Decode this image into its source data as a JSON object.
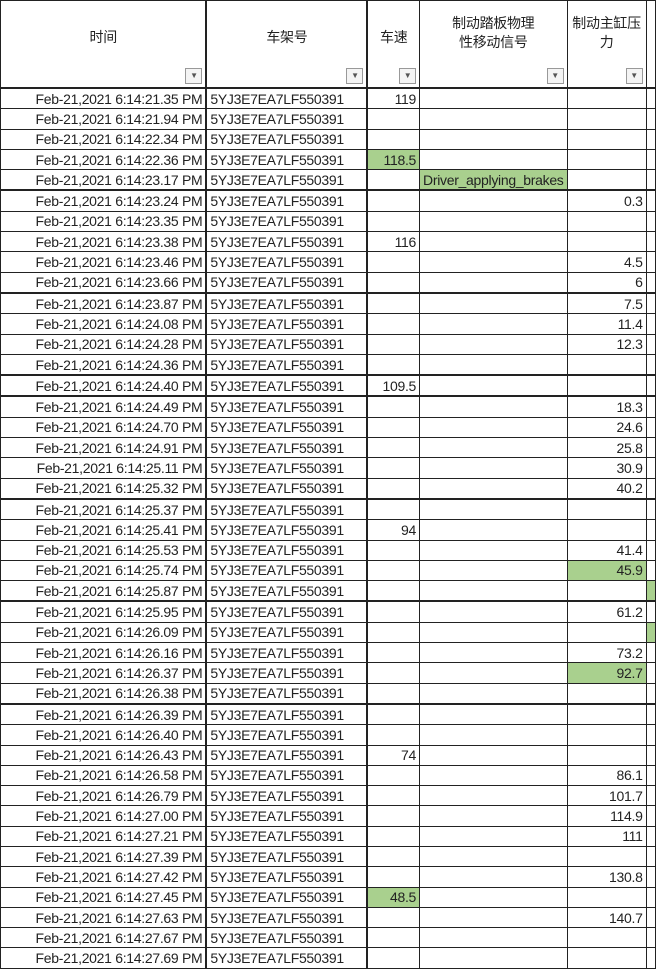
{
  "headers": [
    "时间",
    "车架号",
    "车速",
    "制动踏板物理性移动信号",
    "制动主缸压力"
  ],
  "header_lines": {
    "col3": [
      "制动踏板物理",
      "性移动信号"
    ],
    "col4": [
      "制动主缸压",
      "力"
    ]
  },
  "filter_icon": "dropdown-arrow-icon",
  "highlight_color": "#a9d08e",
  "vin": "5YJ3E7EA7LF550391",
  "rows": [
    {
      "time": "Feb-21,2021 6:14:21.35 PM",
      "speed": "119",
      "signal": "",
      "pressure": ""
    },
    {
      "time": "Feb-21,2021 6:14:21.94 PM",
      "speed": "",
      "signal": "",
      "pressure": ""
    },
    {
      "time": "Feb-21,2021 6:14:22.34 PM",
      "speed": "",
      "signal": "",
      "pressure": ""
    },
    {
      "time": "Feb-21,2021 6:14:22.36 PM",
      "speed": "118.5",
      "signal": "",
      "pressure": "",
      "speed_hl": true
    },
    {
      "time": "Feb-21,2021 6:14:23.17 PM",
      "speed": "",
      "signal": "Driver_applying_brakes",
      "pressure": "",
      "signal_hl": true
    },
    {
      "time": "Feb-21,2021 6:14:23.24 PM",
      "speed": "",
      "signal": "",
      "pressure": "0.3",
      "thick": true
    },
    {
      "time": "Feb-21,2021 6:14:23.35 PM",
      "speed": "",
      "signal": "",
      "pressure": ""
    },
    {
      "time": "Feb-21,2021 6:14:23.38 PM",
      "speed": "116",
      "signal": "",
      "pressure": ""
    },
    {
      "time": "Feb-21,2021 6:14:23.46 PM",
      "speed": "",
      "signal": "",
      "pressure": "4.5"
    },
    {
      "time": "Feb-21,2021 6:14:23.66 PM",
      "speed": "",
      "signal": "",
      "pressure": "6"
    },
    {
      "time": "Feb-21,2021 6:14:23.87 PM",
      "speed": "",
      "signal": "",
      "pressure": "7.5",
      "thick": true
    },
    {
      "time": "Feb-21,2021 6:14:24.08 PM",
      "speed": "",
      "signal": "",
      "pressure": "11.4"
    },
    {
      "time": "Feb-21,2021 6:14:24.28 PM",
      "speed": "",
      "signal": "",
      "pressure": "12.3"
    },
    {
      "time": "Feb-21,2021 6:14:24.36 PM",
      "speed": "",
      "signal": "",
      "pressure": ""
    },
    {
      "time": "Feb-21,2021 6:14:24.40 PM",
      "speed": "109.5",
      "signal": "",
      "pressure": "",
      "thick": true
    },
    {
      "time": "Feb-21,2021 6:14:24.49 PM",
      "speed": "",
      "signal": "",
      "pressure": "18.3",
      "thick": true
    },
    {
      "time": "Feb-21,2021 6:14:24.70 PM",
      "speed": "",
      "signal": "",
      "pressure": "24.6"
    },
    {
      "time": "Feb-21,2021 6:14:24.91 PM",
      "speed": "",
      "signal": "",
      "pressure": "25.8"
    },
    {
      "time": "Feb-21,2021 6:14:25.11 PM",
      "speed": "",
      "signal": "",
      "pressure": "30.9"
    },
    {
      "time": "Feb-21,2021 6:14:25.32 PM",
      "speed": "",
      "signal": "",
      "pressure": "40.2"
    },
    {
      "time": "Feb-21,2021 6:14:25.37 PM",
      "speed": "",
      "signal": "",
      "pressure": "",
      "thick": true
    },
    {
      "time": "Feb-21,2021 6:14:25.41 PM",
      "speed": "94",
      "signal": "",
      "pressure": ""
    },
    {
      "time": "Feb-21,2021 6:14:25.53 PM",
      "speed": "",
      "signal": "",
      "pressure": "41.4"
    },
    {
      "time": "Feb-21,2021 6:14:25.74 PM",
      "speed": "",
      "signal": "",
      "pressure": "45.9",
      "pressure_hl": true
    },
    {
      "time": "Feb-21,2021 6:14:25.87 PM",
      "speed": "",
      "signal": "",
      "pressure": "",
      "edge_hl": true
    },
    {
      "time": "Feb-21,2021 6:14:25.95 PM",
      "speed": "",
      "signal": "",
      "pressure": "61.2",
      "thick": true
    },
    {
      "time": "Feb-21,2021 6:14:26.09 PM",
      "speed": "",
      "signal": "",
      "pressure": "",
      "edge_hl": true
    },
    {
      "time": "Feb-21,2021 6:14:26.16 PM",
      "speed": "",
      "signal": "",
      "pressure": "73.2"
    },
    {
      "time": "Feb-21,2021 6:14:26.37 PM",
      "speed": "",
      "signal": "",
      "pressure": "92.7",
      "pressure_hl": true
    },
    {
      "time": "Feb-21,2021 6:14:26.38 PM",
      "speed": "",
      "signal": "",
      "pressure": ""
    },
    {
      "time": "Feb-21,2021 6:14:26.39 PM",
      "speed": "",
      "signal": "",
      "pressure": "",
      "thick": true
    },
    {
      "time": "Feb-21,2021 6:14:26.40 PM",
      "speed": "",
      "signal": "",
      "pressure": ""
    },
    {
      "time": "Feb-21,2021 6:14:26.43 PM",
      "speed": "74",
      "signal": "",
      "pressure": ""
    },
    {
      "time": "Feb-21,2021 6:14:26.58 PM",
      "speed": "",
      "signal": "",
      "pressure": "86.1"
    },
    {
      "time": "Feb-21,2021 6:14:26.79 PM",
      "speed": "",
      "signal": "",
      "pressure": "101.7"
    },
    {
      "time": "Feb-21,2021 6:14:27.00 PM",
      "speed": "",
      "signal": "",
      "pressure": "114.9"
    },
    {
      "time": "Feb-21,2021 6:14:27.21 PM",
      "speed": "",
      "signal": "",
      "pressure": "111"
    },
    {
      "time": "Feb-21,2021 6:14:27.39 PM",
      "speed": "",
      "signal": "",
      "pressure": ""
    },
    {
      "time": "Feb-21,2021 6:14:27.42 PM",
      "speed": "",
      "signal": "",
      "pressure": "130.8"
    },
    {
      "time": "Feb-21,2021 6:14:27.45 PM",
      "speed": "48.5",
      "signal": "",
      "pressure": "",
      "speed_hl": true
    },
    {
      "time": "Feb-21,2021 6:14:27.63 PM",
      "speed": "",
      "signal": "",
      "pressure": "140.7"
    },
    {
      "time": "Feb-21,2021 6:14:27.67 PM",
      "speed": "",
      "signal": "",
      "pressure": ""
    },
    {
      "time": "Feb-21,2021 6:14:27.69 PM",
      "speed": "",
      "signal": "",
      "pressure": ""
    }
  ]
}
